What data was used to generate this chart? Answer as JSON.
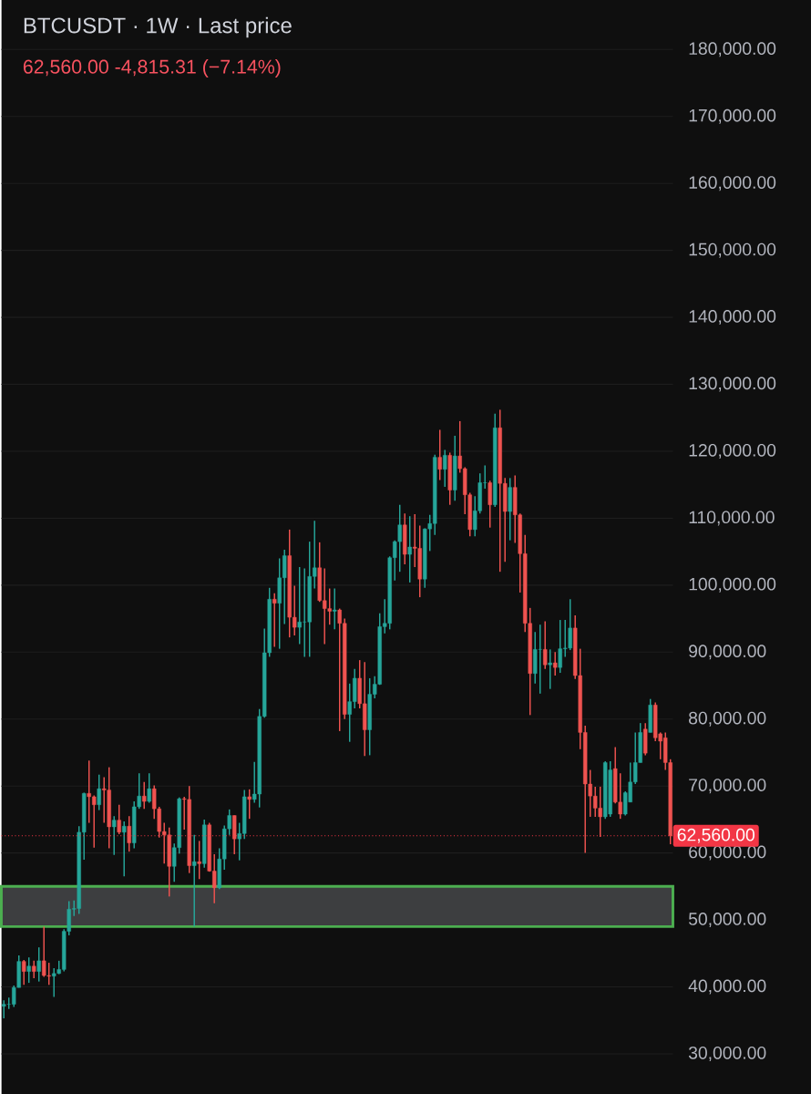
{
  "chart_data": {
    "type": "candlestick",
    "title": "BTCUSDT · 1W · Last price",
    "subtitle": "62,560.00  -4,815.31 (−7.14%)",
    "categories": [
      null,
      null,
      null,
      null,
      null,
      null,
      null,
      null,
      null,
      null,
      null,
      null,
      null,
      null,
      null,
      null,
      null,
      null,
      null,
      null,
      null,
      null,
      null,
      null,
      null,
      null,
      null,
      null,
      null,
      null,
      null,
      null,
      null,
      null,
      null,
      null,
      null,
      null,
      null,
      null,
      null,
      null,
      null,
      null,
      null,
      null,
      null,
      null,
      null,
      null,
      null,
      null,
      null,
      null,
      null,
      null,
      null,
      null,
      null,
      null,
      null,
      null,
      null,
      null,
      null,
      null,
      null,
      null,
      null,
      null,
      null,
      null,
      null,
      null,
      null,
      null,
      null,
      null,
      null,
      null,
      null,
      null,
      null,
      null,
      null,
      null,
      null,
      null,
      null,
      null,
      null,
      null,
      null,
      null,
      null,
      null,
      null,
      null,
      null,
      null,
      null,
      null,
      null,
      null,
      null,
      null,
      null,
      null,
      null,
      null,
      null,
      null,
      null,
      null,
      null,
      null,
      null,
      null,
      null,
      null,
      null,
      null,
      null,
      null,
      null,
      null,
      null,
      null,
      null,
      null,
      null,
      null,
      null,
      null
    ],
    "ohlc": [
      [
        37100,
        38000,
        35300,
        37400
      ],
      [
        37400,
        38400,
        36700,
        37400
      ],
      [
        37400,
        40200,
        37000,
        39900
      ],
      [
        39900,
        44700,
        39900,
        43800
      ],
      [
        43800,
        44000,
        40300,
        42300
      ],
      [
        42300,
        44400,
        40600,
        43100
      ],
      [
        43100,
        43900,
        41300,
        42300
      ],
      [
        42300,
        45900,
        40800,
        43900
      ],
      [
        43900,
        49000,
        41500,
        41700
      ],
      [
        41700,
        43600,
        40300,
        41600
      ],
      [
        41600,
        42800,
        38500,
        42000
      ],
      [
        42000,
        43900,
        41900,
        42600
      ],
      [
        42600,
        48600,
        42300,
        48300
      ],
      [
        48300,
        52800,
        47700,
        51600
      ],
      [
        51600,
        52900,
        50600,
        51700
      ],
      [
        51700,
        64000,
        50900,
        63100
      ],
      [
        63100,
        69000,
        59000,
        68900
      ],
      [
        68900,
        73800,
        64500,
        68400
      ],
      [
        68400,
        68600,
        60800,
        67200
      ],
      [
        67200,
        71700,
        66400,
        69600
      ],
      [
        69600,
        71300,
        64500,
        69400
      ],
      [
        69400,
        72800,
        60700,
        63900
      ],
      [
        63900,
        65500,
        59700,
        64900
      ],
      [
        64900,
        67200,
        62800,
        63100
      ],
      [
        63100,
        64700,
        56500,
        64000
      ],
      [
        64000,
        65500,
        60200,
        61500
      ],
      [
        61500,
        67700,
        60700,
        66900
      ],
      [
        66900,
        71900,
        66600,
        68500
      ],
      [
        68500,
        70600,
        66600,
        67700
      ],
      [
        67700,
        71900,
        67500,
        69600
      ],
      [
        69600,
        70100,
        65100,
        66600
      ],
      [
        66600,
        66900,
        62300,
        63200
      ],
      [
        63200,
        64500,
        58400,
        62700
      ],
      [
        62700,
        63800,
        53500,
        58000
      ],
      [
        58000,
        61400,
        55700,
        60800
      ],
      [
        60800,
        68300,
        59900,
        68100
      ],
      [
        68100,
        68400,
        63500,
        68000
      ],
      [
        68000,
        70000,
        57000,
        58100
      ],
      [
        58100,
        62700,
        49000,
        58700
      ],
      [
        58700,
        61800,
        56100,
        58400
      ],
      [
        58400,
        65000,
        57800,
        64200
      ],
      [
        64200,
        64500,
        57200,
        57300
      ],
      [
        57300,
        59800,
        52500,
        54800
      ],
      [
        54800,
        60700,
        54600,
        59100
      ],
      [
        59100,
        64100,
        57500,
        63600
      ],
      [
        63600,
        66500,
        62700,
        65600
      ],
      [
        65600,
        65600,
        59800,
        62100
      ],
      [
        62100,
        64500,
        58900,
        62900
      ],
      [
        62900,
        69400,
        62100,
        68400
      ],
      [
        68400,
        69500,
        65100,
        68000
      ],
      [
        68000,
        73600,
        67500,
        68800
      ],
      [
        68800,
        81500,
        66800,
        80400
      ],
      [
        80400,
        93500,
        80200,
        89900
      ],
      [
        89900,
        99600,
        89300,
        97900
      ],
      [
        97900,
        98800,
        90800,
        97300
      ],
      [
        97300,
        104000,
        90500,
        101100
      ],
      [
        101100,
        105300,
        94200,
        104400
      ],
      [
        104400,
        108300,
        92200,
        95200
      ],
      [
        95200,
        99900,
        92500,
        93700
      ],
      [
        93700,
        102700,
        91200,
        94500
      ],
      [
        94500,
        102500,
        89300,
        94500
      ],
      [
        94500,
        106500,
        89300,
        101300
      ],
      [
        101300,
        109600,
        99500,
        102600
      ],
      [
        102600,
        106400,
        97500,
        97700
      ],
      [
        97700,
        102500,
        91200,
        96500
      ],
      [
        96500,
        99500,
        94100,
        96100
      ],
      [
        96100,
        99500,
        93400,
        96300
      ],
      [
        96300,
        96500,
        78200,
        94300
      ],
      [
        94300,
        95000,
        80000,
        80700
      ],
      [
        80700,
        85300,
        76600,
        82600
      ],
      [
        82600,
        87500,
        81600,
        86100
      ],
      [
        86100,
        88800,
        81600,
        82300
      ],
      [
        82300,
        88500,
        74500,
        78400
      ],
      [
        78400,
        86100,
        74600,
        83700
      ],
      [
        83700,
        86400,
        83100,
        85200
      ],
      [
        85200,
        95800,
        85100,
        93800
      ],
      [
        93800,
        97900,
        92800,
        94300
      ],
      [
        94300,
        104300,
        93400,
        104100
      ],
      [
        104100,
        106700,
        100700,
        106500
      ],
      [
        106500,
        112000,
        102000,
        109000
      ],
      [
        109000,
        110700,
        103100,
        104600
      ],
      [
        104600,
        110300,
        100400,
        105700
      ],
      [
        105700,
        110600,
        102700,
        105500
      ],
      [
        105500,
        108900,
        98200,
        100900
      ],
      [
        100900,
        108500,
        99600,
        108400
      ],
      [
        108400,
        110500,
        105100,
        109200
      ],
      [
        109200,
        119500,
        107500,
        119100
      ],
      [
        119100,
        123200,
        115700,
        117300
      ],
      [
        117300,
        120200,
        114700,
        119400
      ],
      [
        119400,
        119800,
        112000,
        114200
      ],
      [
        114200,
        122300,
        112600,
        119300
      ],
      [
        119300,
        124500,
        116800,
        117400
      ],
      [
        117400,
        117600,
        110600,
        113500
      ],
      [
        113500,
        113800,
        107300,
        108300
      ],
      [
        108300,
        113300,
        107300,
        111100
      ],
      [
        111100,
        116700,
        110700,
        115300
      ],
      [
        115300,
        117900,
        114400,
        115300
      ],
      [
        115300,
        115600,
        108600,
        112000
      ],
      [
        112000,
        125600,
        111700,
        123500
      ],
      [
        123500,
        126200,
        102000,
        115200
      ],
      [
        115200,
        116000,
        103500,
        111000
      ],
      [
        111000,
        116000,
        106700,
        114600
      ],
      [
        114600,
        116400,
        106300,
        110500
      ],
      [
        110500,
        110700,
        98900,
        104700
      ],
      [
        104700,
        107500,
        93000,
        94300
      ],
      [
        94300,
        96600,
        80600,
        86800
      ],
      [
        86800,
        93000,
        85300,
        90400
      ],
      [
        90400,
        94100,
        83800,
        90400
      ],
      [
        90400,
        94600,
        87500,
        88100
      ],
      [
        88100,
        90400,
        84500,
        88400
      ],
      [
        88400,
        90000,
        86500,
        87700
      ],
      [
        87700,
        94800,
        86900,
        90500
      ],
      [
        90500,
        94800,
        89300,
        90600
      ],
      [
        90600,
        97900,
        90300,
        93600
      ],
      [
        93600,
        95500,
        86000,
        86500
      ],
      [
        86500,
        90500,
        75500,
        78000
      ],
      [
        78000,
        79000,
        60000,
        70300
      ],
      [
        70300,
        72400,
        65400,
        68500
      ],
      [
        68500,
        69900,
        65400,
        66700
      ],
      [
        66700,
        69900,
        62400,
        65400
      ],
      [
        65400,
        73700,
        65100,
        73500
      ],
      [
        65800,
        73700,
        65400,
        72400
      ],
      [
        72600,
        75800,
        67400,
        67600
      ],
      [
        67600,
        71900,
        65100,
        65800
      ],
      [
        65800,
        69200,
        65600,
        69000
      ],
      [
        67600,
        73500,
        67600,
        70600
      ],
      [
        70600,
        78000,
        70300,
        73500
      ],
      [
        73500,
        79400,
        73500,
        78000
      ],
      [
        78500,
        79400,
        74600,
        74900
      ],
      [
        78000,
        83000,
        78000,
        82100
      ],
      [
        82100,
        82500,
        76700,
        77200
      ],
      [
        77800,
        78000,
        74000,
        76700
      ],
      [
        77200,
        78000,
        72400,
        73500
      ],
      [
        73500,
        74000,
        61300,
        62560
      ]
    ],
    "ylim": [
      24000,
      187400
    ],
    "yticks": [
      {
        "value": 30000,
        "label": "30,000.00"
      },
      {
        "value": 40000,
        "label": "40,000.00"
      },
      {
        "value": 50000,
        "label": "50,000.00"
      },
      {
        "value": 60000,
        "label": "60,000.00"
      },
      {
        "value": 70000,
        "label": "70,000.00"
      },
      {
        "value": 80000,
        "label": "80,000.00"
      },
      {
        "value": 90000,
        "label": "90,000.00"
      },
      {
        "value": 100000,
        "label": "100,000.00"
      },
      {
        "value": 110000,
        "label": "110,000.00"
      },
      {
        "value": 120000,
        "label": "120,000.00"
      },
      {
        "value": 130000,
        "label": "130,000.00"
      },
      {
        "value": 140000,
        "label": "140,000.00"
      },
      {
        "value": 150000,
        "label": "150,000.00"
      },
      {
        "value": 160000,
        "label": "160,000.00"
      },
      {
        "value": 170000,
        "label": "170,000.00"
      },
      {
        "value": 180000,
        "label": "180,000.00"
      }
    ],
    "grid": "y",
    "ref_lines": [
      {
        "axis": "y",
        "value": 62560,
        "label": "62,560.00",
        "color": "#f23645",
        "line_style": "dotted"
      }
    ],
    "bands": [
      {
        "axis": "y",
        "from": 49000,
        "to": 55000,
        "color": "#3d3e40"
      }
    ]
  }
}
